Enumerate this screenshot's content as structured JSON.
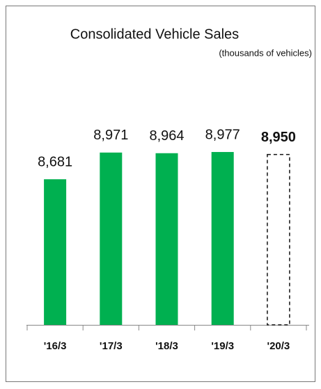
{
  "chart_data": {
    "type": "bar",
    "title": "Consolidated Vehicle Sales",
    "subtitle": "(thousands of vehicles)",
    "categories": [
      "'16/3",
      "'17/3",
      "'18/3",
      "'19/3",
      "'20/3"
    ],
    "values": [
      8681,
      8971,
      8964,
      8977,
      8950
    ],
    "value_labels": [
      "8,681",
      "8,971",
      "8,964",
      "8,977",
      "8,950"
    ],
    "dashed": [
      false,
      false,
      false,
      false,
      true
    ],
    "color": "#00b050",
    "ylim": [
      7100,
      9000
    ]
  }
}
